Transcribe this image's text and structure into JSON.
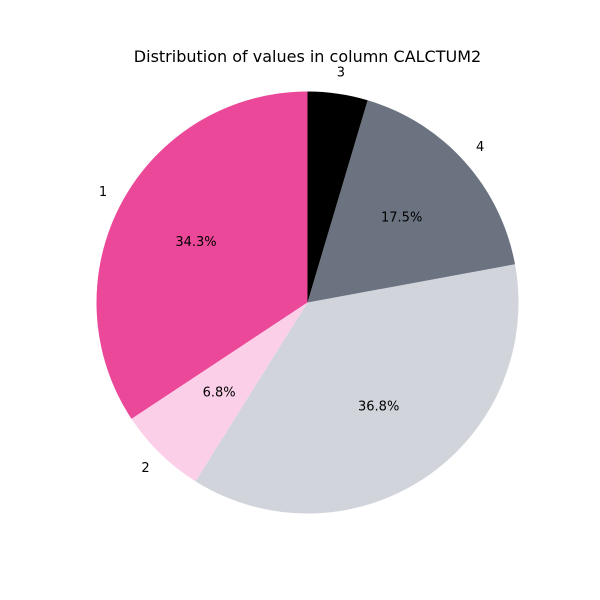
{
  "chart_data": {
    "type": "pie",
    "title": "Distribution of values in column CALCTUM2",
    "start_angle_deg": 90,
    "direction": "counterclockwise",
    "legend": "none",
    "slices": [
      {
        "label": "1",
        "value": 34.3,
        "pct_label": "34.3%",
        "color": "#ec4899"
      },
      {
        "label": "2",
        "value": 6.8,
        "pct_label": "6.8%",
        "color": "#fbcfe8"
      },
      {
        "label": "",
        "value": 36.8,
        "pct_label": "36.8%",
        "color": "#d1d5db"
      },
      {
        "label": "4",
        "value": 17.5,
        "pct_label": "17.5%",
        "color": "#6b7280"
      },
      {
        "label": "3",
        "value": 4.6,
        "pct_label": "",
        "color": "#000000"
      }
    ]
  }
}
